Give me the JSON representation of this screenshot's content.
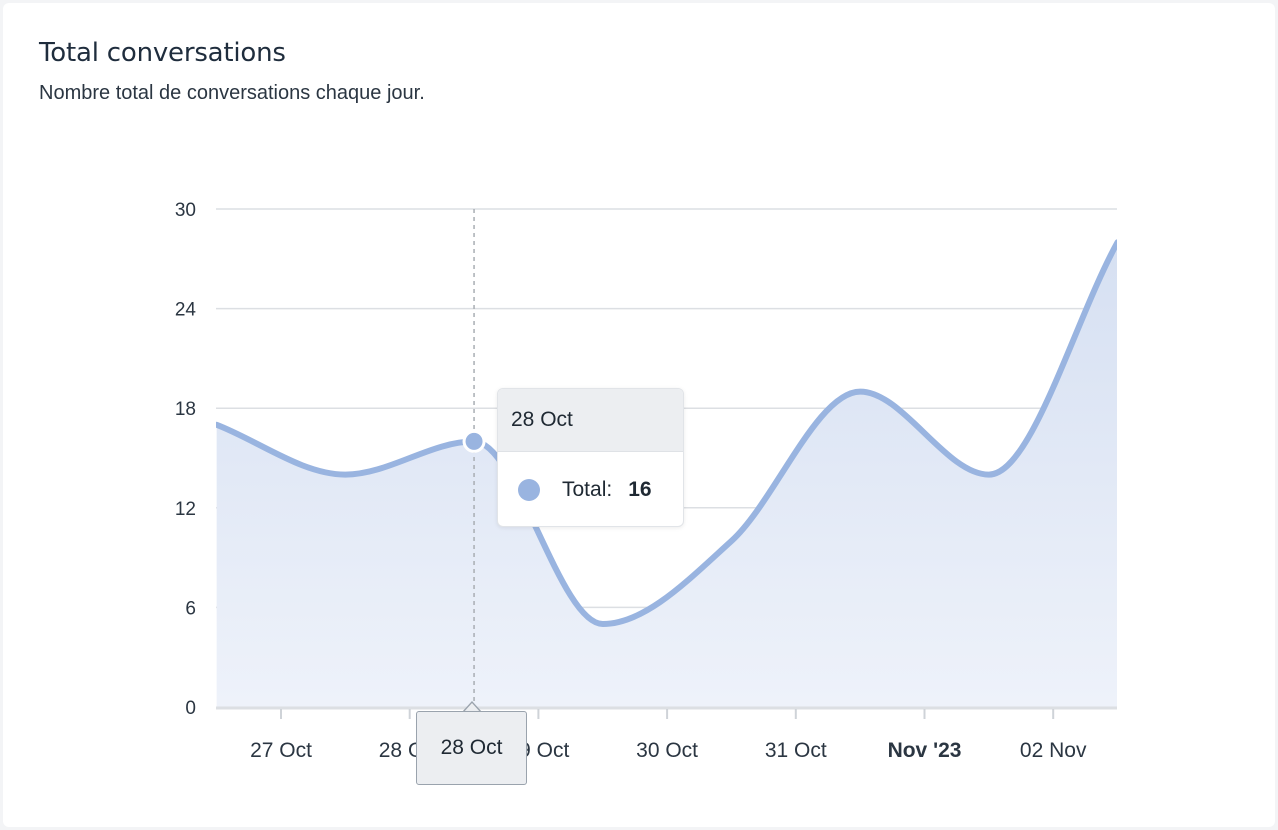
{
  "card": {
    "title": "Total conversations",
    "subtitle": "Nombre total de conversations chaque jour."
  },
  "chart_data": {
    "type": "area",
    "x_labels": [
      "27 Oct",
      "28 Oct",
      "29 Oct",
      "30 Oct",
      "31 Oct",
      "Nov '23",
      "02 Nov"
    ],
    "x_label_bold": [
      "Nov '23"
    ],
    "y_ticks": [
      0,
      6,
      12,
      18,
      24,
      30
    ],
    "ylim": [
      0,
      30
    ],
    "series": [
      {
        "name": "Total",
        "color": "#99b4e0",
        "fill": "#dde5f3",
        "points": [
          {
            "x": "26 Oct 12:00",
            "y": 17
          },
          {
            "x": "27 Oct 12:00",
            "y": 14
          },
          {
            "x": "28 Oct 12:00",
            "y": 16
          },
          {
            "x": "29 Oct 12:00",
            "y": 5
          },
          {
            "x": "30 Oct 12:00",
            "y": 10
          },
          {
            "x": "31 Oct 12:00",
            "y": 19
          },
          {
            "x": "01 Nov 12:00",
            "y": 14
          },
          {
            "x": "02 Nov 12:00",
            "y": 28
          }
        ]
      }
    ],
    "grid": true
  },
  "tooltip": {
    "date": "28 Oct",
    "series_label": "Total:",
    "value": "16"
  },
  "crosshair": {
    "label": "28 Oct"
  }
}
